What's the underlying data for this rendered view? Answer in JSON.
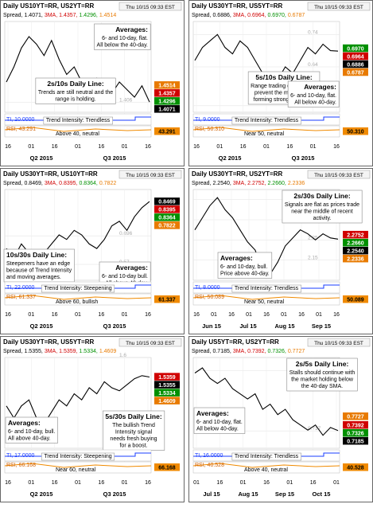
{
  "chart_data": [
    {
      "type": "line",
      "title": "Daily US10YT=RR, US2YT=RR",
      "timestamp": "Thu 10/15 09:33 EST",
      "header": [
        "Spread, 1.4071,",
        "3MA, 1.4357,",
        "1.4296,",
        "1.4514"
      ],
      "header_colors": [
        "#000000",
        "#d00000",
        "#009000",
        "#e87a00"
      ],
      "series": [
        {
          "color": "#000000",
          "values": [
            1.46,
            1.5,
            1.55,
            1.58,
            1.56,
            1.53,
            1.57,
            1.52,
            1.48,
            1.5,
            1.46,
            1.44,
            1.47,
            1.45,
            1.43,
            1.46,
            1.44,
            1.42,
            1.45,
            1.4071
          ]
        }
      ],
      "ylim": [
        1.38,
        1.62
      ],
      "yticks": [
        1.406
      ],
      "tags": {
        "values": [
          1.4514,
          1.4357,
          1.4296,
          1.4071
        ],
        "value_labels": [
          "1.4514",
          "1.4357",
          "1.4296",
          "1.4071"
        ],
        "colors": [
          "#e87a00",
          "#d00000",
          "#009000",
          "#000000"
        ]
      },
      "annotation_title": "2s/10s Daily Line:",
      "annotation": [
        "Trends are still neutral and the",
        "range is holding."
      ],
      "averages_title": "Averages:",
      "averages": [
        "6- and 10-day, flat.",
        "All below the 40-day."
      ],
      "ti_label": "TI, 10.0000",
      "trend_label": "Trend Intensity: Trendless",
      "rsi_label": "RSI, 43.291",
      "rsi_note": "Above 40, neutral",
      "rsi": {
        "value": 43.291,
        "label": "43.291"
      },
      "day_labels": [
        "16",
        "01",
        "16",
        "01",
        "16",
        "01",
        "16"
      ],
      "periods": [
        "Q2 2015",
        "Q3 2015"
      ]
    },
    {
      "type": "line",
      "title": "Daily US30YT=RR, US5YT=RR",
      "timestamp": "Thu 10/15 09:33 EST",
      "header": [
        "Spread, 0.6886,",
        "3MA, 0.6964,",
        "0.6970,",
        "0.6787"
      ],
      "header_colors": [
        "#000000",
        "#d00000",
        "#009000",
        "#e87a00"
      ],
      "series": [
        {
          "color": "#000000",
          "values": [
            0.66,
            0.7,
            0.72,
            0.74,
            0.7,
            0.68,
            0.72,
            0.7,
            0.66,
            0.62,
            0.58,
            0.6,
            0.64,
            0.62,
            0.66,
            0.7,
            0.68,
            0.71,
            0.69,
            0.6886
          ]
        }
      ],
      "ylim": [
        0.5,
        0.78
      ],
      "yticks": [
        0.52,
        0.64,
        0.74
      ],
      "tags": {
        "values": [
          0.697,
          0.6964,
          0.6886,
          0.6787
        ],
        "value_labels": [
          "0.6970",
          "0.6964",
          "0.6886",
          "0.6787"
        ],
        "colors": [
          "#009000",
          "#d00000",
          "#000000",
          "#e87a00"
        ]
      },
      "annotation_title": "5s/10s Daily Line:",
      "annotation": [
        "Range trading continues to",
        "prevent the market from",
        "forming stronger signals."
      ],
      "averages_title": "Averages:",
      "averages": [
        "6- and 10-day, flat.",
        "All below 40-day."
      ],
      "ti_label": "TI, 9.0000",
      "trend_label": "Trend Intensity: Trendless",
      "rsi_label": "RSI, 50.310",
      "rsi_note": "Near 50, neutral",
      "rsi": {
        "value": 50.31,
        "label": "50.310"
      },
      "day_labels": [
        "16",
        "01",
        "16",
        "01",
        "16",
        "01",
        "16"
      ],
      "periods": [
        "Q2 2015",
        "Q3 2015"
      ]
    },
    {
      "type": "line",
      "title": "Daily US30YT=RR, US10YT=RR",
      "timestamp": "Thu 10/15 09:33 EST",
      "header": [
        "Spread, 0.8469,",
        "3MA, 0.8395,",
        "0.8364,",
        "0.7822"
      ],
      "header_colors": [
        "#000000",
        "#d00000",
        "#009000",
        "#e87a00"
      ],
      "series": [
        {
          "color": "#000000",
          "values": [
            0.64,
            0.6,
            0.66,
            0.62,
            0.58,
            0.62,
            0.66,
            0.7,
            0.68,
            0.72,
            0.7,
            0.66,
            0.64,
            0.68,
            0.74,
            0.76,
            0.72,
            0.78,
            0.82,
            0.8469
          ]
        }
      ],
      "ylim": [
        0.5,
        0.9
      ],
      "yticks": [
        0.57,
        0.696
      ],
      "tags": {
        "values": [
          0.8469,
          0.8395,
          0.8364,
          0.7822
        ],
        "value_labels": [
          "0.8469",
          "0.8395",
          "0.8364",
          "0.7822"
        ],
        "colors": [
          "#000000",
          "#d00000",
          "#009000",
          "#e87a00"
        ]
      },
      "annotation_title": "10s/30s Daily Line:",
      "annotation": [
        "Steepeners have an edge",
        "because of Trend Intensity",
        "and moving averages."
      ],
      "averages_title": "Averages:",
      "averages": [
        "6- and 10-day bull.",
        "All above 40-day."
      ],
      "ti_label": "TI, 22.0000",
      "trend_label": "Trend Intensity: Steepening",
      "rsi_label": "RSI, 61.337",
      "rsi_note": "Above 60, bullish",
      "rsi": {
        "value": 61.337,
        "label": "61.337"
      },
      "day_labels": [
        "16",
        "01",
        "16",
        "01",
        "16",
        "01",
        "16"
      ],
      "periods": [
        "Q2 2015",
        "Q3 2015"
      ]
    },
    {
      "type": "line",
      "title": "Daily US30YT=RR, US2YT=RR",
      "timestamp": "Thu 10/15 09:33 EST",
      "header": [
        "Spread, 2.2540,",
        "3MA, 2.2752,",
        "2.2660,",
        "2.2336"
      ],
      "header_colors": [
        "#000000",
        "#d00000",
        "#009000",
        "#e87a00"
      ],
      "series": [
        {
          "color": "#000000",
          "values": [
            2.3,
            2.36,
            2.42,
            2.46,
            2.4,
            2.36,
            2.3,
            2.24,
            2.2,
            2.1,
            2.08,
            2.14,
            2.22,
            2.26,
            2.3,
            2.28,
            2.25,
            2.28,
            2.26,
            2.254
          ]
        }
      ],
      "ylim": [
        2.05,
        2.5
      ],
      "yticks": [
        2.15,
        2.25,
        2.35,
        2.45
      ],
      "tags": {
        "values": [
          2.2752,
          2.266,
          2.254,
          2.2336
        ],
        "value_labels": [
          "2.2752",
          "2.2660",
          "2.2540",
          "2.2336"
        ],
        "colors": [
          "#d00000",
          "#009000",
          "#000000",
          "#e87a00"
        ]
      },
      "annotation_title": "2s/30s Daily Line:",
      "annotation": [
        "Signals are flat as prices trade",
        "near the middle of recent",
        "activity."
      ],
      "averages_title": "Averages:",
      "averages": [
        "6- and 10-day, bull.",
        "Price above 40-day."
      ],
      "ti_label": "TI, 8.0000",
      "trend_label": "Trend Intensity: Trendless",
      "rsi_label": "RSI, 50.089",
      "rsi_note": "Near 50, neutral",
      "rsi": {
        "value": 50.089,
        "label": "50.089"
      },
      "day_labels": [
        "16",
        "01",
        "16",
        "01",
        "16",
        "01",
        "16",
        "01",
        "16"
      ],
      "periods": [
        "Jun 15",
        "Jul 15",
        "Aug 15",
        "Sep 15"
      ]
    },
    {
      "type": "line",
      "title": "Daily US30YT=RR, US5YT=RR",
      "timestamp": "Thu 10/15 09:33 EST",
      "header": [
        "Spread, 1.5355,",
        "3MA, 1.5359,",
        "1.5334,",
        "1.4609"
      ],
      "header_colors": [
        "#000000",
        "#d00000",
        "#009000",
        "#e87a00"
      ],
      "series": [
        {
          "color": "#000000",
          "values": [
            1.44,
            1.4,
            1.44,
            1.46,
            1.4,
            1.38,
            1.42,
            1.46,
            1.44,
            1.48,
            1.46,
            1.5,
            1.48,
            1.52,
            1.5,
            1.49,
            1.51,
            1.53,
            1.54,
            1.5355
          ]
        }
      ],
      "ylim": [
        1.3,
        1.6
      ],
      "yticks": [
        1.6
      ],
      "tags": {
        "values": [
          1.5359,
          1.5355,
          1.5334,
          1.4609
        ],
        "value_labels": [
          "1.5359",
          "1.5355",
          "1.5334",
          "1.4609"
        ],
        "colors": [
          "#d00000",
          "#000000",
          "#009000",
          "#e87a00"
        ]
      },
      "annotation_title": "5s/30s Daily Line:",
      "annotation": [
        "The bullish Trend",
        "Intensity signal",
        "needs fresh buying",
        "for a boost."
      ],
      "averages_title": "Averages:",
      "averages": [
        "6- and 10-day, bull.",
        "All above 40-day."
      ],
      "ti_label": "TI, 17.0000",
      "trend_label": "Trend Intensity: Steepening",
      "rsi_label": "RSI, 66.168",
      "rsi_note": "Near 60, neutral",
      "rsi": {
        "value": 66.168,
        "label": "66.168"
      },
      "day_labels": [
        "16",
        "01",
        "16",
        "01",
        "16",
        "01",
        "16"
      ],
      "periods": [
        "Q2 2015",
        "Q3 2015"
      ]
    },
    {
      "type": "line",
      "title": "Daily US5YT=RR, US2YT=RR",
      "timestamp": "Thu 10/15 09:33 EST",
      "header": [
        "Spread, 0.7185,",
        "3MA, 0.7392,",
        "0.7326,",
        "0.7727"
      ],
      "header_colors": [
        "#000000",
        "#d00000",
        "#009000",
        "#e87a00"
      ],
      "series": [
        {
          "color": "#000000",
          "values": [
            0.94,
            0.96,
            0.92,
            0.9,
            0.92,
            0.88,
            0.86,
            0.84,
            0.86,
            0.8,
            0.82,
            0.78,
            0.8,
            0.76,
            0.74,
            0.72,
            0.74,
            0.7,
            0.73,
            0.7185
          ]
        }
      ],
      "ylim": [
        0.65,
        1.0
      ],
      "yticks": [
        0.717,
        0.95
      ],
      "tags": {
        "values": [
          0.7727,
          0.7392,
          0.7326,
          0.7185
        ],
        "value_labels": [
          "0.7727",
          "0.7392",
          "0.7326",
          "0.7185"
        ],
        "colors": [
          "#e87a00",
          "#d00000",
          "#009000",
          "#000000"
        ]
      },
      "annotation_title": "2s/5s Daily Line:",
      "annotation": [
        "Stalls should continue with",
        "the market holding below",
        "the 40-day SMA."
      ],
      "averages_title": "Averages:",
      "averages": [
        "6- and 10-day, flat.",
        "All below 40-day."
      ],
      "ti_label": "TI, 16.0000",
      "trend_label": "Trend Intensity: Trendless",
      "rsi_label": "RSI, 40.528",
      "rsi_note": "Above 40, neutral",
      "rsi": {
        "value": 40.528,
        "label": "40.528"
      },
      "day_labels": [
        "01",
        "16",
        "01",
        "16",
        "01",
        "16",
        "01"
      ],
      "periods": [
        "Jul 15",
        "Aug 15",
        "Sep 15",
        "Oct 15"
      ]
    }
  ]
}
